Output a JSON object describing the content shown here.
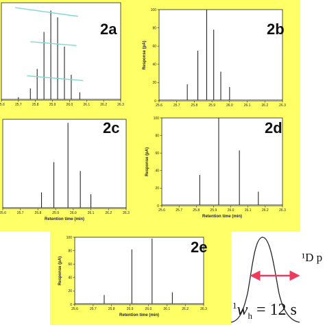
{
  "colors": {
    "background": "#ffff66",
    "trace": "#111111",
    "guide": "#7fd9d2",
    "arrow": "#ee3a5b"
  },
  "panels": [
    {
      "id": "2a",
      "label": "2a"
    },
    {
      "id": "2b",
      "label": "2b"
    },
    {
      "id": "2c",
      "label": "2c"
    },
    {
      "id": "2d",
      "label": "2d"
    },
    {
      "id": "2e",
      "label": "2e"
    }
  ],
  "gaussian": {
    "label_top": "¹D p",
    "label_bottom_w": "w",
    "label_bottom_sub": "h",
    "label_bottom_sup": "1",
    "label_bottom_rest": " = 12 s"
  },
  "chart_data": [
    {
      "id": "2a",
      "type": "line",
      "xlabel": "",
      "ylabel": "",
      "xlim": [
        25.6,
        26.3
      ],
      "ylim": [
        0,
        100
      ],
      "xticks": [
        "25.6",
        "25.7",
        "25.8",
        "25.9",
        "26.0",
        "26.1",
        "26.2",
        "26.3"
      ],
      "yticks": [],
      "peaks": [
        {
          "x": 25.7,
          "y": 3
        },
        {
          "x": 25.77,
          "y": 12
        },
        {
          "x": 25.81,
          "y": 32
        },
        {
          "x": 25.85,
          "y": 70
        },
        {
          "x": 25.89,
          "y": 92
        },
        {
          "x": 25.93,
          "y": 85
        },
        {
          "x": 25.97,
          "y": 55
        },
        {
          "x": 26.01,
          "y": 26
        },
        {
          "x": 26.06,
          "y": 8
        }
      ],
      "guides": [
        {
          "x1": 25.68,
          "y1": 95,
          "x2": 26.05,
          "y2": 86
        },
        {
          "x1": 25.77,
          "y1": 60,
          "x2": 26.04,
          "y2": 56
        },
        {
          "x1": 25.75,
          "y1": 25,
          "x2": 26.08,
          "y2": 20
        }
      ]
    },
    {
      "id": "2b",
      "type": "line",
      "xlabel": "",
      "ylabel": "Response (pA)",
      "xlim": [
        25.6,
        26.3
      ],
      "ylim": [
        0,
        100
      ],
      "xticks": [
        "25.6",
        "25.7",
        "25.8",
        "25.9",
        "26.0",
        "26.1",
        "26.2",
        "26.3"
      ],
      "yticks": [
        "0",
        "20",
        "40",
        "60",
        "80",
        "100"
      ],
      "peaks": [
        {
          "x": 25.76,
          "y": 18
        },
        {
          "x": 25.82,
          "y": 55
        },
        {
          "x": 25.87,
          "y": 100
        },
        {
          "x": 25.91,
          "y": 78
        },
        {
          "x": 25.95,
          "y": 32
        },
        {
          "x": 26.0,
          "y": 15
        }
      ]
    },
    {
      "id": "2c",
      "type": "line",
      "xlabel": "Retention time (min)",
      "ylabel": "",
      "xlim": [
        25.6,
        26.3
      ],
      "ylim": [
        0,
        100
      ],
      "xticks": [
        "25.6",
        "25.7",
        "25.8",
        "25.9",
        "26.0",
        "26.1",
        "26.2",
        "26.3"
      ],
      "yticks": [],
      "peaks": [
        {
          "x": 25.82,
          "y": 18
        },
        {
          "x": 25.89,
          "y": 52
        },
        {
          "x": 25.97,
          "y": 96
        },
        {
          "x": 26.04,
          "y": 42
        },
        {
          "x": 26.1,
          "y": 16
        }
      ]
    },
    {
      "id": "2d",
      "type": "line",
      "xlabel": "Retention time (min)",
      "ylabel": "Response (pA)",
      "xlim": [
        25.6,
        26.3
      ],
      "ylim": [
        0,
        100
      ],
      "xticks": [
        "25.6",
        "25.7",
        "25.8",
        "25.9",
        "26.0",
        "26.1",
        "26.2",
        "26.3"
      ],
      "yticks": [
        "0",
        "20",
        "40",
        "60",
        "80",
        "100"
      ],
      "peaks": [
        {
          "x": 25.82,
          "y": 35
        },
        {
          "x": 25.93,
          "y": 100
        },
        {
          "x": 26.05,
          "y": 63
        },
        {
          "x": 26.16,
          "y": 16
        }
      ]
    },
    {
      "id": "2e",
      "type": "line",
      "xlabel": "Retention time (min)",
      "ylabel": "Response (pA)",
      "xlim": [
        25.6,
        26.3
      ],
      "ylim": [
        0,
        100
      ],
      "xticks": [
        "25.6",
        "25.7",
        "25.8",
        "25.9",
        "26.0",
        "26.1",
        "26.2",
        "26.3"
      ],
      "yticks": [
        "0",
        "20",
        "40",
        "60",
        "80",
        "100"
      ],
      "peaks": [
        {
          "x": 25.76,
          "y": 14
        },
        {
          "x": 25.91,
          "y": 82
        },
        {
          "x": 26.02,
          "y": 98
        },
        {
          "x": 26.13,
          "y": 18
        }
      ]
    }
  ]
}
